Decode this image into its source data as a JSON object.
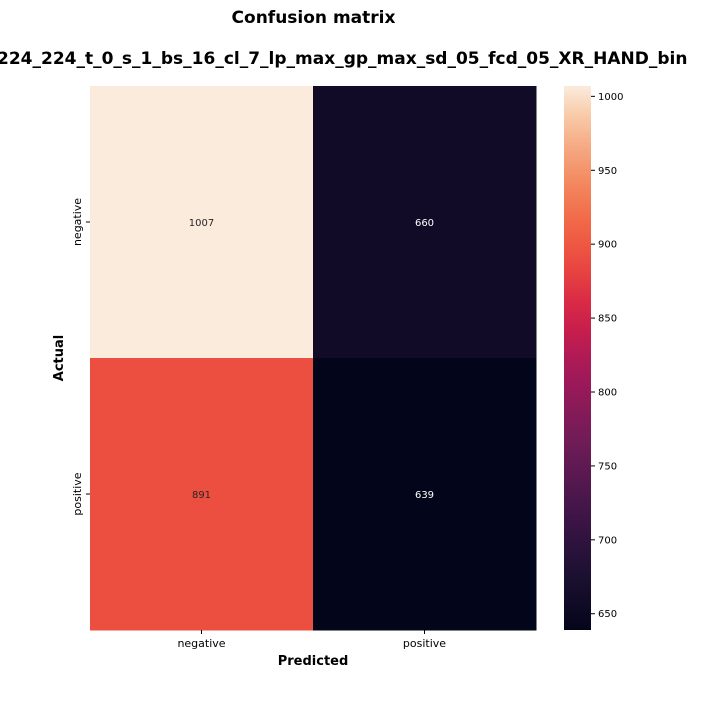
{
  "chart_data": {
    "type": "heatmap",
    "title": "Confusion matrix",
    "subtitle": "224_224_t_0_s_1_bs_16_cl_7_lp_max_gp_max_sd_05_fcd_05_XR_HAND_bin",
    "xlabel": "Predicted",
    "ylabel": "Actual",
    "x_categories": [
      "negative",
      "positive"
    ],
    "y_categories": [
      "negative",
      "positive"
    ],
    "values": [
      [
        1007,
        660
      ],
      [
        891,
        639
      ]
    ],
    "colorbar": {
      "ticks": [
        1000,
        950,
        900,
        850,
        800,
        750,
        700,
        650
      ],
      "range": [
        639,
        1007
      ],
      "colormap": "rocket"
    }
  }
}
